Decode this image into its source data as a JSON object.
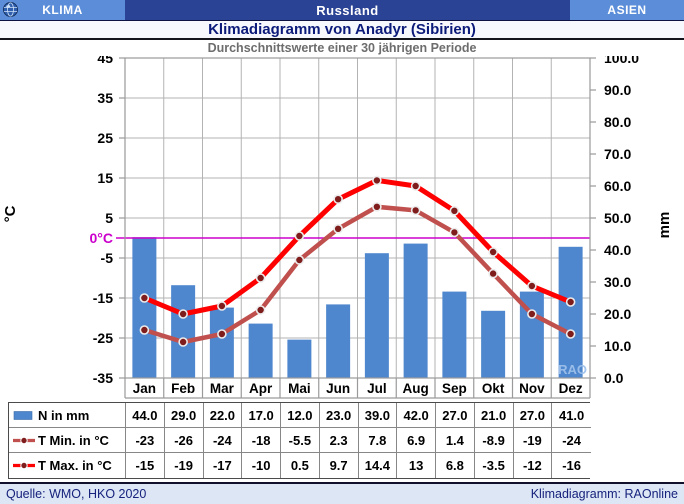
{
  "header": {
    "left_tab": "KLIMA",
    "region": "Russland",
    "right_tab": "ASIEN",
    "title": "Klimadiagramm von Anadyr (Sibirien)",
    "subtitle": "Durchschnittswerte einer 30 jährigen Periode"
  },
  "footer": {
    "source": "Quelle:  WMO, HKO 2020",
    "credit": "Klimadiagramm:  RAOnline"
  },
  "colors": {
    "banner_light_blue": "#5b8dd9",
    "banner_dark_blue": "#2b4394",
    "title_navy": "#0c1a7a",
    "bar_blue": "#4f87ce",
    "tmin_red": "#c0504d",
    "tmax_red": "#fe0000",
    "marker_dark_red": "#7f1d1d",
    "zero_line_magenta": "#cc00cc",
    "grid_gray": "#b3b3b3",
    "frame_gray": "#9a9a9a",
    "watermark_blue": "#9ec0ea"
  },
  "chart_data": {
    "type": "bar+line",
    "title": "Klimadiagramm von Anadyr (Sibirien)",
    "subtitle": "Durchschnittswerte einer 30 jährigen Periode",
    "categories": [
      "Jan",
      "Feb",
      "Mar",
      "Apr",
      "Mai",
      "Jun",
      "Jul",
      "Aug",
      "Sep",
      "Okt",
      "Nov",
      "Dez"
    ],
    "series": [
      {
        "name": "N in mm",
        "type": "bar",
        "axis": "right",
        "color": "#4f87ce",
        "values": [
          44.0,
          29.0,
          22.0,
          17.0,
          12.0,
          23.0,
          39.0,
          42.0,
          27.0,
          21.0,
          27.0,
          41.0
        ],
        "display": [
          "44.0",
          "29.0",
          "22.0",
          "17.0",
          "12.0",
          "23.0",
          "39.0",
          "42.0",
          "27.0",
          "21.0",
          "27.0",
          "41.0"
        ]
      },
      {
        "name": "T Min. in °C",
        "type": "line",
        "axis": "left",
        "color": "#c0504d",
        "marker_color": "#7f1d1d",
        "values": [
          -23,
          -26,
          -24,
          -18,
          -5.5,
          2.3,
          7.8,
          6.9,
          1.4,
          -8.9,
          -19,
          -24
        ],
        "display": [
          "-23",
          "-26",
          "-24",
          "-18",
          "-5.5",
          "2.3",
          "7.8",
          "6.9",
          "1.4",
          "-8.9",
          "-19",
          "-24"
        ]
      },
      {
        "name": "T Max. in °C",
        "type": "line",
        "axis": "left",
        "color": "#fe0000",
        "marker_color": "#7f1d1d",
        "values": [
          -15,
          -19,
          -17,
          -10,
          0.5,
          9.7,
          14.4,
          13,
          6.8,
          -3.5,
          -12,
          -16
        ],
        "display": [
          "-15",
          "-19",
          "-17",
          "-10",
          "0.5",
          "9.7",
          "14.4",
          "13",
          "6.8",
          "-3.5",
          "-12",
          "-16"
        ]
      }
    ],
    "left_axis": {
      "label": "°C",
      "min": -35,
      "max": 45,
      "tick_step": 10,
      "ticks": [
        "45",
        "35",
        "25",
        "15",
        "5",
        "-5",
        "-15",
        "-25",
        "-35"
      ],
      "zero_label": "0°C"
    },
    "right_axis": {
      "label": "mm",
      "min": 0,
      "max": 100,
      "tick_step": 10,
      "ticks": [
        "100.0",
        "90.0",
        "80.0",
        "70.0",
        "60.0",
        "50.0",
        "40.0",
        "30.0",
        "20.0",
        "10.0",
        "0.0"
      ]
    },
    "grid": true,
    "legend_position": "table-left",
    "watermark": "RAO"
  }
}
